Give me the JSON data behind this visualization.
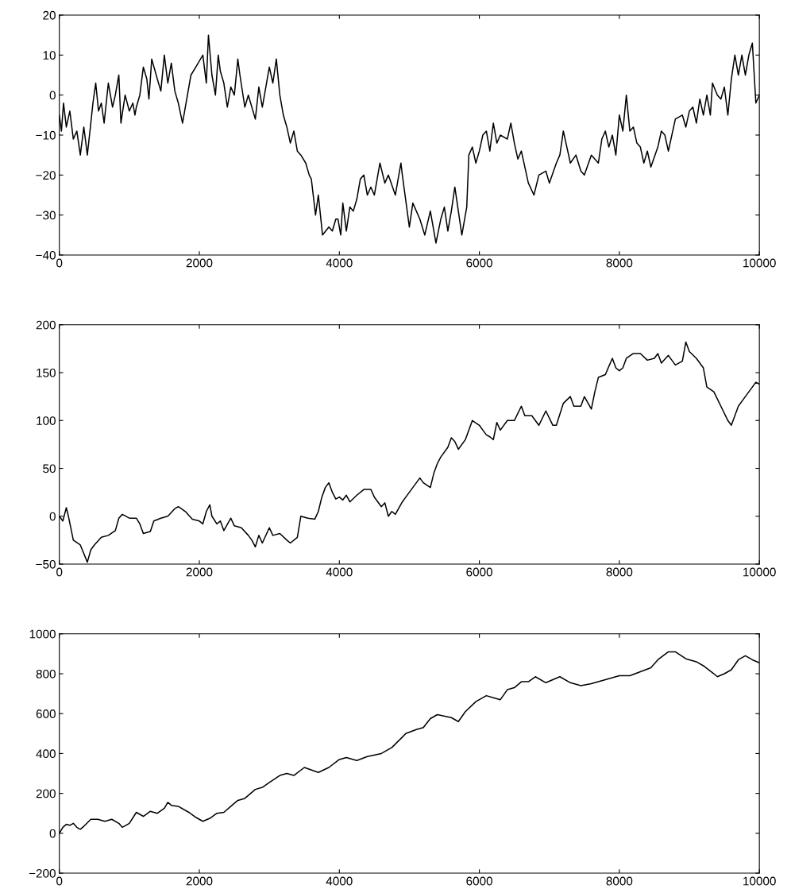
{
  "chart_data": [
    {
      "type": "line",
      "xlim": [
        0,
        10000
      ],
      "xticks": [
        0,
        2000,
        4000,
        6000,
        8000,
        10000
      ],
      "ylim": [
        -40,
        20
      ],
      "yticks": [
        -40,
        -30,
        -20,
        -10,
        0,
        10,
        20
      ],
      "grid": false,
      "marker": "none",
      "line_style": "solid",
      "series": [
        {
          "color": "#000000",
          "x": [
            0,
            30,
            60,
            100,
            150,
            200,
            250,
            300,
            350,
            400,
            450,
            480,
            520,
            560,
            600,
            640,
            700,
            760,
            800,
            850,
            880,
            940,
            1000,
            1050,
            1080,
            1100,
            1150,
            1200,
            1250,
            1280,
            1320,
            1400,
            1450,
            1500,
            1550,
            1600,
            1650,
            1700,
            1760,
            1800,
            1880,
            1950,
            2050,
            2100,
            2130,
            2180,
            2230,
            2270,
            2300,
            2350,
            2400,
            2450,
            2500,
            2550,
            2580,
            2650,
            2700,
            2800,
            2850,
            2900,
            3000,
            3050,
            3100,
            3150,
            3200,
            3250,
            3300,
            3350,
            3400,
            3450,
            3520,
            3570,
            3600,
            3660,
            3700,
            3760,
            3850,
            3900,
            3950,
            3980,
            4020,
            4050,
            4100,
            4150,
            4200,
            4250,
            4300,
            4350,
            4400,
            4450,
            4500,
            4580,
            4650,
            4700,
            4800,
            4880,
            4900,
            5000,
            5050,
            5150,
            5220,
            5300,
            5380,
            5450,
            5500,
            5550,
            5600,
            5650,
            5750,
            5820,
            5850,
            5900,
            5950,
            6000,
            6050,
            6100,
            6150,
            6200,
            6250,
            6300,
            6400,
            6450,
            6500,
            6550,
            6600,
            6700,
            6780,
            6850,
            6950,
            7000,
            7100,
            7150,
            7200,
            7250,
            7300,
            7380,
            7450,
            7500,
            7600,
            7700,
            7750,
            7800,
            7850,
            7900,
            7950,
            8000,
            8050,
            8100,
            8150,
            8200,
            8250,
            8300,
            8350,
            8400,
            8450,
            8550,
            8600,
            8650,
            8700,
            8750,
            8800,
            8900,
            8950,
            9000,
            9050,
            9100,
            9150,
            9200,
            9250,
            9300,
            9330,
            9400,
            9450,
            9500,
            9550,
            9600,
            9650,
            9700,
            9750,
            9800,
            9850,
            9900,
            9950,
            10000
          ],
          "values": [
            -5,
            -9,
            -2,
            -8,
            -4,
            -11,
            -9,
            -15,
            -8,
            -15,
            -7,
            -2,
            3,
            -4,
            -2,
            -7,
            3,
            -3,
            0,
            5,
            -7,
            0,
            -4,
            -2,
            -5,
            -3,
            0,
            7,
            4,
            -1,
            9,
            4,
            1,
            10,
            3,
            8,
            1,
            -2,
            -7,
            -3,
            5,
            7,
            10,
            3,
            15,
            5,
            0,
            10,
            6,
            3,
            -3,
            2,
            0,
            9,
            5,
            -3,
            0,
            -6,
            2,
            -3,
            7,
            3,
            9,
            0,
            -5,
            -8,
            -12,
            -9,
            -14,
            -15,
            -17,
            -20,
            -21,
            -30,
            -25,
            -35,
            -33,
            -34,
            -31,
            -31,
            -35,
            -27,
            -34,
            -28,
            -29,
            -26,
            -21,
            -20,
            -25,
            -23,
            -25,
            -17,
            -22,
            -20,
            -25,
            -17,
            -20,
            -33,
            -27,
            -31,
            -35,
            -29,
            -37,
            -31,
            -28,
            -34,
            -29,
            -23,
            -35,
            -28,
            -15,
            -13,
            -17,
            -14,
            -10,
            -9,
            -14,
            -7,
            -12,
            -10,
            -11,
            -7,
            -12,
            -16,
            -14,
            -22,
            -25,
            -20,
            -19,
            -22,
            -17,
            -15,
            -9,
            -13,
            -17,
            -15,
            -19,
            -20,
            -15,
            -17,
            -11,
            -9,
            -13,
            -10,
            -15,
            -5,
            -9,
            0,
            -9,
            -8,
            -12,
            -13,
            -17,
            -14,
            -18,
            -13,
            -9,
            -10,
            -14,
            -10,
            -6,
            -5,
            -8,
            -4,
            -3,
            -7,
            -1,
            -5,
            0,
            -5,
            3,
            0,
            -1,
            2,
            -5,
            4,
            10,
            5,
            10,
            5,
            10,
            13,
            -2,
            0
          ]
        }
      ]
    },
    {
      "type": "line",
      "xlim": [
        0,
        10000
      ],
      "xticks": [
        0,
        2000,
        4000,
        6000,
        8000,
        10000
      ],
      "ylim": [
        -50,
        200
      ],
      "yticks": [
        -50,
        0,
        50,
        100,
        150,
        200
      ],
      "grid": false,
      "marker": "none",
      "line_style": "solid",
      "series": [
        {
          "color": "#000000",
          "x": [
            0,
            50,
            100,
            130,
            200,
            300,
            400,
            450,
            500,
            600,
            700,
            800,
            850,
            900,
            1000,
            1100,
            1150,
            1200,
            1300,
            1350,
            1450,
            1550,
            1650,
            1700,
            1800,
            1900,
            2000,
            2050,
            2100,
            2150,
            2180,
            2250,
            2300,
            2350,
            2450,
            2500,
            2600,
            2700,
            2750,
            2800,
            2850,
            2900,
            3000,
            3050,
            3150,
            3250,
            3300,
            3400,
            3450,
            3550,
            3650,
            3700,
            3750,
            3800,
            3850,
            3900,
            3950,
            4000,
            4050,
            4100,
            4150,
            4250,
            4350,
            4450,
            4500,
            4550,
            4600,
            4650,
            4700,
            4750,
            4800,
            4900,
            5000,
            5100,
            5150,
            5200,
            5300,
            5350,
            5400,
            5450,
            5550,
            5600,
            5650,
            5700,
            5800,
            5900,
            6000,
            6050,
            6100,
            6150,
            6200,
            6250,
            6300,
            6400,
            6500,
            6600,
            6650,
            6750,
            6850,
            6950,
            7050,
            7100,
            7200,
            7300,
            7350,
            7450,
            7500,
            7600,
            7650,
            7700,
            7800,
            7900,
            7950,
            8000,
            8050,
            8100,
            8200,
            8300,
            8400,
            8500,
            8550,
            8600,
            8700,
            8800,
            8900,
            8950,
            9000,
            9100,
            9200,
            9250,
            9350,
            9450,
            9550,
            9600,
            9700,
            9800,
            9850,
            9950,
            10000
          ],
          "values": [
            0,
            -5,
            9,
            0,
            -25,
            -30,
            -48,
            -35,
            -30,
            -22,
            -20,
            -15,
            -2,
            2,
            -2,
            -2,
            -8,
            -18,
            -16,
            -5,
            -2,
            0,
            8,
            10,
            5,
            -3,
            -5,
            -8,
            5,
            12,
            0,
            -8,
            -5,
            -15,
            -2,
            -10,
            -12,
            -20,
            -25,
            -32,
            -20,
            -28,
            -12,
            -20,
            -18,
            -25,
            -28,
            -22,
            0,
            -2,
            -3,
            5,
            20,
            30,
            35,
            25,
            18,
            20,
            17,
            22,
            15,
            22,
            28,
            28,
            20,
            15,
            10,
            14,
            0,
            5,
            2,
            15,
            25,
            35,
            40,
            35,
            30,
            45,
            55,
            62,
            72,
            82,
            78,
            70,
            80,
            100,
            95,
            90,
            85,
            83,
            80,
            98,
            90,
            100,
            100,
            115,
            105,
            105,
            95,
            110,
            95,
            95,
            118,
            125,
            115,
            115,
            125,
            112,
            130,
            145,
            148,
            165,
            155,
            152,
            155,
            165,
            170,
            170,
            163,
            165,
            170,
            160,
            168,
            158,
            162,
            182,
            172,
            165,
            155,
            135,
            130,
            115,
            100,
            95,
            115,
            125,
            130,
            140,
            138
          ]
        }
      ]
    },
    {
      "type": "line",
      "xlim": [
        0,
        10000
      ],
      "xticks": [
        0,
        2000,
        4000,
        6000,
        8000,
        10000
      ],
      "ylim": [
        -200,
        1000
      ],
      "yticks": [
        -200,
        0,
        200,
        400,
        600,
        800,
        1000
      ],
      "grid": false,
      "marker": "none",
      "line_style": "solid",
      "series": [
        {
          "color": "#000000",
          "x": [
            0,
            50,
            100,
            150,
            200,
            250,
            300,
            350,
            450,
            550,
            650,
            750,
            850,
            900,
            1000,
            1100,
            1200,
            1300,
            1400,
            1500,
            1550,
            1600,
            1700,
            1850,
            1950,
            2050,
            2150,
            2250,
            2350,
            2450,
            2550,
            2650,
            2800,
            2900,
            3000,
            3150,
            3250,
            3350,
            3500,
            3700,
            3850,
            4000,
            4100,
            4250,
            4400,
            4600,
            4750,
            4950,
            5100,
            5200,
            5300,
            5400,
            5600,
            5700,
            5800,
            5950,
            6100,
            6200,
            6300,
            6400,
            6500,
            6600,
            6700,
            6800,
            6950,
            7150,
            7300,
            7450,
            7600,
            7800,
            8000,
            8150,
            8300,
            8450,
            8550,
            8700,
            8800,
            8950,
            9100,
            9200,
            9350,
            9400,
            9500,
            9600,
            9700,
            9800,
            9900,
            10000
          ],
          "values": [
            0,
            30,
            45,
            40,
            50,
            30,
            20,
            35,
            70,
            70,
            60,
            70,
            50,
            30,
            50,
            105,
            85,
            110,
            100,
            125,
            155,
            140,
            135,
            105,
            80,
            60,
            75,
            100,
            105,
            135,
            165,
            175,
            220,
            230,
            255,
            290,
            300,
            290,
            330,
            305,
            330,
            370,
            380,
            365,
            385,
            400,
            430,
            500,
            520,
            530,
            575,
            595,
            580,
            560,
            610,
            660,
            690,
            680,
            670,
            720,
            730,
            760,
            760,
            785,
            755,
            785,
            755,
            740,
            750,
            770,
            790,
            790,
            810,
            830,
            870,
            910,
            910,
            875,
            860,
            840,
            800,
            785,
            800,
            820,
            870,
            890,
            870,
            855
          ]
        }
      ]
    }
  ]
}
